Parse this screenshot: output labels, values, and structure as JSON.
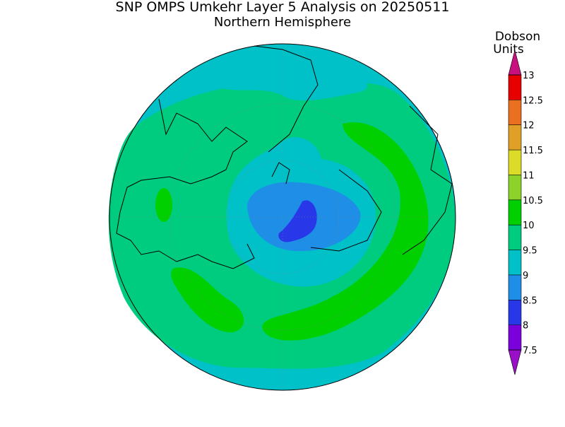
{
  "title": "SNP OMPS Umkehr Layer 5 Analysis on 20250511",
  "subtitle": "Northern Hemisphere",
  "colorbar": {
    "label_lines": [
      "Dobson",
      "Units"
    ],
    "ticks": [
      7.5,
      8,
      8.5,
      9,
      9.5,
      10,
      10.5,
      11,
      11.5,
      12,
      12.5,
      13
    ],
    "colors": [
      "#7a00dc",
      "#2838e8",
      "#1e8ee6",
      "#00c0c8",
      "#00cc80",
      "#00d000",
      "#8cd22a",
      "#dcdc28",
      "#e0a028",
      "#e87020",
      "#e60000"
    ],
    "under_color": "#9a10c8",
    "over_color": "#c8107e"
  }
}
